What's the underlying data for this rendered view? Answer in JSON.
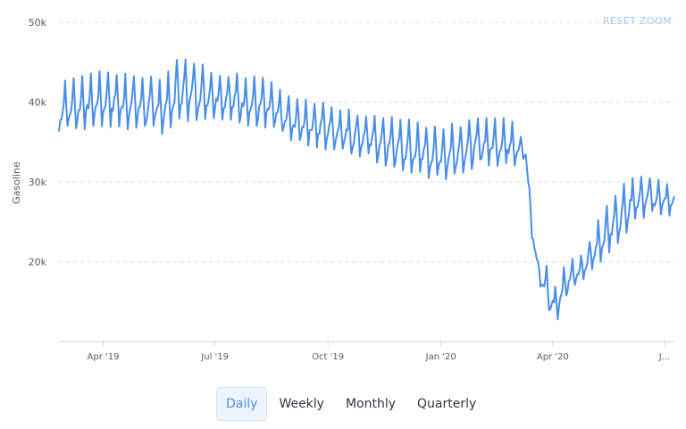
{
  "reset_zoom_label": "RESET ZOOM",
  "tabs": [
    {
      "label": "Daily",
      "active": true
    },
    {
      "label": "Weekly",
      "active": false
    },
    {
      "label": "Monthly",
      "active": false
    },
    {
      "label": "Quarterly",
      "active": false
    }
  ],
  "chart_data": {
    "type": "line",
    "title": "",
    "xlabel": "",
    "ylabel": "Gasoline",
    "y_ticks": [
      "50k",
      "40k",
      "30k",
      "20k"
    ],
    "y_tick_values": [
      50000,
      40000,
      30000,
      20000
    ],
    "ylim": [
      10000,
      50000
    ],
    "x_ticks": [
      "Apr '19",
      "Jul '19",
      "Oct '19",
      "Jan '20",
      "Apr '20",
      "J..."
    ],
    "x_tick_dates": [
      "2019-04-01",
      "2019-07-01",
      "2019-10-01",
      "2020-01-01",
      "2020-04-01",
      "2020-07-01"
    ],
    "xlim": [
      "2019-02-24",
      "2020-07-09"
    ],
    "grid": true,
    "legend": "none",
    "line_color": "#4a8ee8",
    "series": [
      {
        "values_description_key": "daily",
        "weekly_envelope": [
          [
            "2019-02-24",
            36000,
            42500
          ],
          [
            "2019-04-01",
            37000,
            44000
          ],
          [
            "2019-05-20",
            36000,
            43000
          ],
          [
            "2019-06-03",
            37500,
            46000
          ],
          [
            "2019-07-01",
            38000,
            44000
          ],
          [
            "2019-08-12",
            36500,
            43000
          ],
          [
            "2019-09-01",
            35000,
            40500
          ],
          [
            "2019-10-01",
            34000,
            40000
          ],
          [
            "2019-11-01",
            33000,
            38500
          ],
          [
            "2019-12-01",
            31000,
            38000
          ],
          [
            "2020-01-01",
            30000,
            37000
          ],
          [
            "2020-02-01",
            32000,
            38000
          ],
          [
            "2020-03-01",
            32000,
            38000
          ],
          [
            "2020-03-10",
            33000,
            34000
          ],
          [
            "2020-03-15",
            23000,
            26000
          ],
          [
            "2020-03-20",
            18000,
            20000
          ],
          [
            "2020-03-27",
            14000,
            19500
          ],
          [
            "2020-04-03",
            12000,
            17000
          ],
          [
            "2020-04-12",
            15500,
            20000
          ],
          [
            "2020-04-26",
            17500,
            21000
          ],
          [
            "2020-05-10",
            20000,
            26000
          ],
          [
            "2020-05-25",
            22500,
            29000
          ],
          [
            "2020-06-07",
            25000,
            31500
          ],
          [
            "2020-06-21",
            26000,
            30500
          ],
          [
            "2020-07-01",
            25500,
            30000
          ],
          [
            "2020-07-09",
            26000,
            30000
          ]
        ]
      }
    ]
  }
}
